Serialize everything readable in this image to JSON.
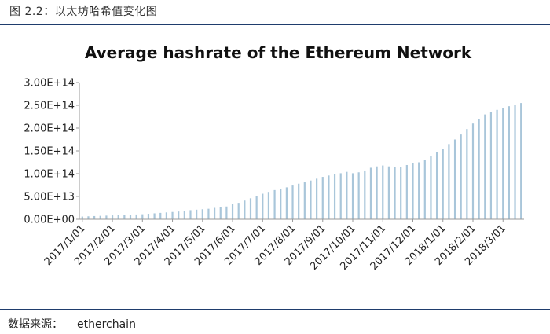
{
  "figure_caption": "图 2.2：以太坊哈希值变化图",
  "source": {
    "label": "数据来源：",
    "value": "etherchain"
  },
  "colors": {
    "bar": "#a9c6da",
    "axis": "#999999",
    "rule": "#1f3d6d"
  },
  "chart_data": {
    "type": "bar",
    "title": "Average hashrate of the Ethereum Network",
    "xlabel": "",
    "ylabel": "",
    "ylim": [
      0,
      300000000000000
    ],
    "yticks": [
      {
        "value": 0,
        "label": "0.00E+00"
      },
      {
        "value": 50000000000000,
        "label": "5.00E+13"
      },
      {
        "value": 100000000000000,
        "label": "1.00E+14"
      },
      {
        "value": 150000000000000,
        "label": "1.50E+14"
      },
      {
        "value": 200000000000000,
        "label": "2.00E+14"
      },
      {
        "value": 250000000000000,
        "label": "2.50E+14"
      },
      {
        "value": 300000000000000,
        "label": "3.00E+14"
      }
    ],
    "grid": false,
    "legend": "none",
    "xticks": [
      {
        "label": "2017/1/01",
        "index": 0
      },
      {
        "label": "2017/2/01",
        "index": 5
      },
      {
        "label": "2017/3/01",
        "index": 10
      },
      {
        "label": "2017/4/01",
        "index": 15
      },
      {
        "label": "2017/5/01",
        "index": 20
      },
      {
        "label": "2017/6/01",
        "index": 25
      },
      {
        "label": "2017/7/01",
        "index": 30
      },
      {
        "label": "2017/8/01",
        "index": 35
      },
      {
        "label": "2017/9/01",
        "index": 40
      },
      {
        "label": "2017/10/01",
        "index": 45
      },
      {
        "label": "2017/11/01",
        "index": 50
      },
      {
        "label": "2017/12/01",
        "index": 55
      },
      {
        "label": "2018/1/01",
        "index": 60
      },
      {
        "label": "2018/2/01",
        "index": 65
      },
      {
        "label": "2018/3/01",
        "index": 70
      }
    ],
    "values": [
      6000000000000.0,
      6500000000000.0,
      7000000000000.0,
      7500000000000.0,
      8000000000000.0,
      8500000000000.0,
      9000000000000.0,
      9500000000000.0,
      10000000000000.0,
      10500000000000.0,
      11000000000000.0,
      12000000000000.0,
      13000000000000.0,
      14000000000000.0,
      15000000000000.0,
      16000000000000.0,
      17000000000000.0,
      19000000000000.0,
      20000000000000.0,
      21000000000000.0,
      22000000000000.0,
      23000000000000.0,
      25000000000000.0,
      26000000000000.0,
      28000000000000.0,
      33000000000000.0,
      36000000000000.0,
      41000000000000.0,
      46000000000000.0,
      51000000000000.0,
      56000000000000.0,
      60000000000000.0,
      64000000000000.0,
      67000000000000.0,
      70000000000000.0,
      74000000000000.0,
      78000000000000.0,
      81000000000000.0,
      85000000000000.0,
      89000000000000.0,
      93000000000000.0,
      96000000000000.0,
      99000000000000.0,
      101000000000000.0,
      104000000000000.0,
      101000000000000.0,
      103000000000000.0,
      107000000000000.0,
      113000000000000.0,
      116000000000000.0,
      118000000000000.0,
      116000000000000.0,
      115000000000000.0,
      115000000000000.0,
      119000000000000.0,
      123000000000000.0,
      125000000000000.0,
      130000000000000.0,
      139000000000000.0,
      147000000000000.0,
      155000000000000.0,
      165000000000000.0,
      175000000000000.0,
      186000000000000.0,
      198000000000000.0,
      210000000000000.0,
      220000000000000.0,
      230000000000000.0,
      236000000000000.0,
      240000000000000.0,
      244000000000000.0,
      248000000000000.0,
      251000000000000.0,
      255000000000000.0
    ]
  }
}
